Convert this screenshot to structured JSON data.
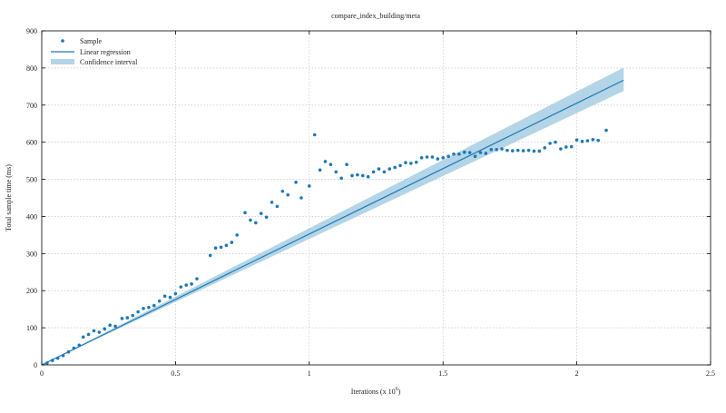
{
  "chart_data": {
    "type": "scatter",
    "title": "compare_index_building/meta",
    "xlabel": "Iterations (x 10",
    "xlabel_exponent": "6",
    "xlabel_suffix": ")",
    "ylabel": "Total sample time (ms)",
    "xlim": [
      0,
      2.5
    ],
    "ylim": [
      0,
      900
    ],
    "x_ticks": [
      0,
      0.5,
      1,
      1.5,
      2,
      2.5
    ],
    "x_tick_labels": [
      "0",
      "0.5",
      "1",
      "1.5",
      "2",
      "2.5"
    ],
    "y_ticks": [
      0,
      100,
      200,
      300,
      400,
      500,
      600,
      700,
      800,
      900
    ],
    "y_tick_labels": [
      "0",
      "100",
      "200",
      "300",
      "400",
      "500",
      "600",
      "700",
      "800",
      "900"
    ],
    "grid": true,
    "legend_position": "top-left",
    "colors": {
      "sample": "#1f78b4",
      "regression": "#1f78b4",
      "confidence": "#a6cee3"
    },
    "legend": [
      {
        "label": "Sample",
        "kind": "point"
      },
      {
        "label": "Linear regression",
        "kind": "line"
      },
      {
        "label": "Confidence interval",
        "kind": "band"
      }
    ],
    "regression": {
      "name": "Linear regression",
      "x": [
        0,
        2.175
      ],
      "y": [
        0,
        767
      ]
    },
    "confidence_interval": {
      "name": "Confidence interval",
      "x": [
        0,
        2.175
      ],
      "lower": [
        0,
        738
      ],
      "upper": [
        0,
        801
      ]
    },
    "series": [
      {
        "name": "Sample",
        "points": [
          [
            0.02,
            5
          ],
          [
            0.04,
            12
          ],
          [
            0.06,
            18
          ],
          [
            0.08,
            25
          ],
          [
            0.1,
            35
          ],
          [
            0.12,
            45
          ],
          [
            0.14,
            53
          ],
          [
            0.155,
            75
          ],
          [
            0.175,
            82
          ],
          [
            0.195,
            92
          ],
          [
            0.215,
            88
          ],
          [
            0.235,
            97
          ],
          [
            0.255,
            107
          ],
          [
            0.275,
            104
          ],
          [
            0.3,
            125
          ],
          [
            0.32,
            127
          ],
          [
            0.34,
            133
          ],
          [
            0.36,
            143
          ],
          [
            0.38,
            152
          ],
          [
            0.4,
            155
          ],
          [
            0.42,
            160
          ],
          [
            0.44,
            172
          ],
          [
            0.46,
            185
          ],
          [
            0.48,
            182
          ],
          [
            0.5,
            192
          ],
          [
            0.52,
            210
          ],
          [
            0.54,
            215
          ],
          [
            0.56,
            218
          ],
          [
            0.58,
            232
          ],
          [
            0.63,
            295
          ],
          [
            0.65,
            315
          ],
          [
            0.67,
            317
          ],
          [
            0.69,
            322
          ],
          [
            0.71,
            330
          ],
          [
            0.73,
            350
          ],
          [
            0.76,
            410
          ],
          [
            0.78,
            390
          ],
          [
            0.8,
            383
          ],
          [
            0.82,
            408
          ],
          [
            0.84,
            398
          ],
          [
            0.86,
            438
          ],
          [
            0.88,
            427
          ],
          [
            0.9,
            468
          ],
          [
            0.92,
            458
          ],
          [
            0.95,
            492
          ],
          [
            0.97,
            450
          ],
          [
            1.0,
            482
          ],
          [
            1.02,
            620
          ],
          [
            1.04,
            525
          ],
          [
            1.06,
            548
          ],
          [
            1.08,
            540
          ],
          [
            1.1,
            520
          ],
          [
            1.12,
            503
          ],
          [
            1.14,
            540
          ],
          [
            1.16,
            510
          ],
          [
            1.18,
            512
          ],
          [
            1.2,
            510
          ],
          [
            1.22,
            507
          ],
          [
            1.24,
            520
          ],
          [
            1.26,
            528
          ],
          [
            1.28,
            520
          ],
          [
            1.3,
            528
          ],
          [
            1.32,
            532
          ],
          [
            1.34,
            537
          ],
          [
            1.36,
            545
          ],
          [
            1.38,
            543
          ],
          [
            1.4,
            546
          ],
          [
            1.42,
            558
          ],
          [
            1.44,
            560
          ],
          [
            1.46,
            560
          ],
          [
            1.48,
            555
          ],
          [
            1.5,
            558
          ],
          [
            1.52,
            562
          ],
          [
            1.54,
            568
          ],
          [
            1.56,
            568
          ],
          [
            1.58,
            573
          ],
          [
            1.6,
            572
          ],
          [
            1.62,
            562
          ],
          [
            1.64,
            572
          ],
          [
            1.66,
            570
          ],
          [
            1.68,
            580
          ],
          [
            1.7,
            580
          ],
          [
            1.72,
            582
          ],
          [
            1.74,
            578
          ],
          [
            1.76,
            577
          ],
          [
            1.78,
            578
          ],
          [
            1.8,
            577
          ],
          [
            1.82,
            578
          ],
          [
            1.84,
            576
          ],
          [
            1.86,
            576
          ],
          [
            1.88,
            585
          ],
          [
            1.9,
            597
          ],
          [
            1.92,
            600
          ],
          [
            1.94,
            582
          ],
          [
            1.96,
            587
          ],
          [
            1.98,
            588
          ],
          [
            2.0,
            606
          ],
          [
            2.02,
            602
          ],
          [
            2.04,
            604
          ],
          [
            2.06,
            607
          ],
          [
            2.08,
            605
          ],
          [
            2.11,
            632
          ]
        ]
      }
    ]
  }
}
